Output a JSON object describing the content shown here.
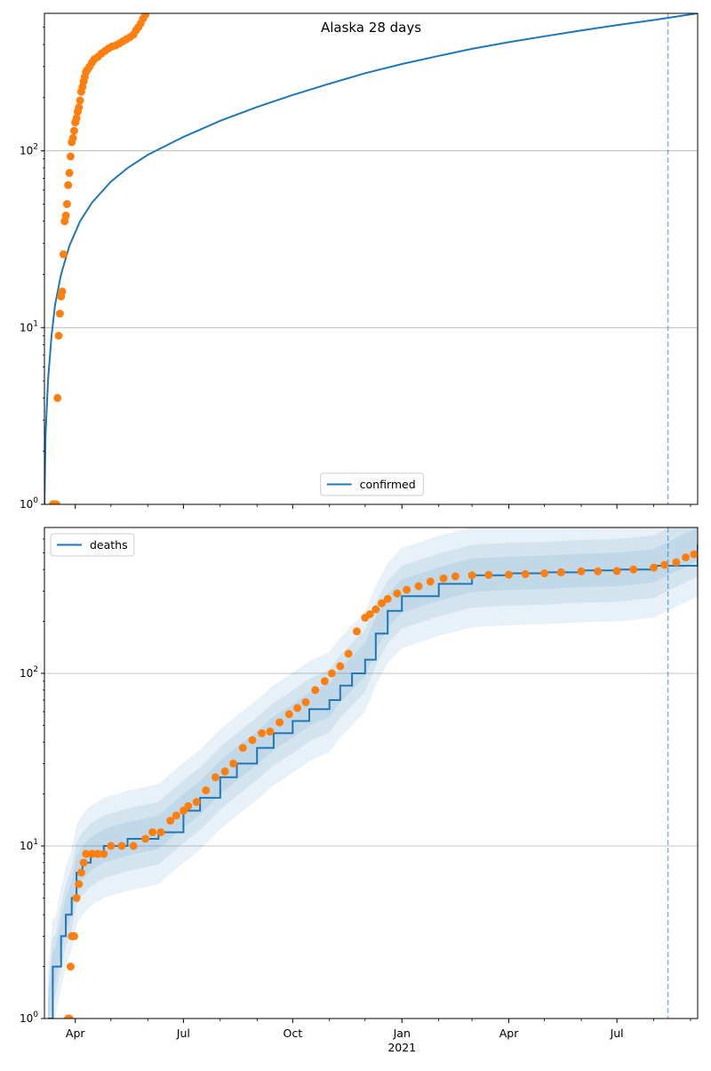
{
  "chart_data": [
    {
      "type": "line",
      "title": "Alaska 28 days",
      "xlabel": "",
      "ylabel": "",
      "yscale": "log",
      "ylim": [
        1,
        600
      ],
      "xlim": [
        "2020-03-06",
        "2021-09-07"
      ],
      "grid": "horizontal major",
      "legend": {
        "placement": "lower-center",
        "entries": [
          "confirmed"
        ]
      },
      "colors": {
        "model": "#1f77b4",
        "observed": "#ff7f0e",
        "marker_line": "#1f77b4"
      },
      "vertical_marker_date": "2021-08-13",
      "ytick_labels": [
        "10^0",
        "10^1",
        "10^2"
      ],
      "series": [
        {
          "name": "confirmed",
          "kind": "line",
          "x": [
            "2020-03-06",
            "2020-03-07",
            "2020-03-09",
            "2020-03-12",
            "2020-03-15",
            "2020-03-20",
            "2020-03-27",
            "2020-04-05",
            "2020-04-15",
            "2020-05-01",
            "2020-05-15",
            "2020-06-01",
            "2020-06-15",
            "2020-07-01",
            "2020-08-01",
            "2020-09-01",
            "2020-10-01",
            "2020-11-01",
            "2020-12-01",
            "2021-01-01",
            "2021-02-01",
            "2021-03-01",
            "2021-04-01",
            "2021-05-01",
            "2021-06-01",
            "2021-07-01",
            "2021-08-01",
            "2021-09-07"
          ],
          "y": [
            1,
            2.5,
            5,
            9,
            13.5,
            20,
            29,
            40,
            51,
            67,
            80,
            95,
            106,
            120,
            148,
            177,
            207,
            240,
            275,
            310,
            345,
            378,
            412,
            445,
            480,
            515,
            550,
            600
          ]
        },
        {
          "name": "",
          "kind": "scatter",
          "x": [
            "2020-03-13",
            "2020-03-14",
            "2020-03-15",
            "2020-03-16",
            "2020-03-17",
            "2020-03-18",
            "2020-03-19",
            "2020-03-20",
            "2020-03-21",
            "2020-03-22",
            "2020-03-23",
            "2020-03-24",
            "2020-03-25",
            "2020-03-26",
            "2020-03-27",
            "2020-03-28",
            "2020-03-29",
            "2020-03-30",
            "2020-03-31",
            "2020-04-01",
            "2020-04-02",
            "2020-04-03",
            "2020-04-04",
            "2020-04-05",
            "2020-04-06",
            "2020-04-07",
            "2020-04-08",
            "2020-04-09",
            "2020-04-10",
            "2020-04-11",
            "2020-04-13",
            "2020-04-15",
            "2020-04-17",
            "2020-04-20",
            "2020-04-23",
            "2020-04-26",
            "2020-04-29",
            "2020-05-02",
            "2020-05-05",
            "2020-05-08",
            "2020-05-11",
            "2020-05-14",
            "2020-05-17",
            "2020-05-20",
            "2020-05-22",
            "2020-05-24",
            "2020-05-26",
            "2020-05-28",
            "2020-05-30",
            "2020-06-01"
          ],
          "y": [
            1,
            1,
            1,
            1,
            4,
            9,
            12,
            15,
            16,
            26,
            40,
            43,
            50,
            64,
            75,
            93,
            112,
            118,
            130,
            145,
            153,
            167,
            176,
            193,
            216,
            230,
            247,
            262,
            280,
            287,
            300,
            316,
            330,
            340,
            355,
            368,
            380,
            390,
            395,
            405,
            417,
            428,
            440,
            455,
            480,
            500,
            525,
            560,
            590,
            630
          ]
        }
      ]
    },
    {
      "type": "line",
      "title": "",
      "xlabel": "",
      "ylabel": "",
      "yscale": "log",
      "ylim": [
        1,
        700
      ],
      "xlim": [
        "2020-03-06",
        "2021-09-07"
      ],
      "grid": "horizontal major",
      "legend": {
        "placement": "upper-left",
        "entries": [
          "deaths"
        ]
      },
      "colors": {
        "model": "#1f77b4",
        "observed": "#ff7f0e",
        "band": "#1f77b4",
        "marker_line": "#1f77b4"
      },
      "vertical_marker_date": "2021-08-13",
      "ytick_labels": [
        "10^0",
        "10^1",
        "10^2"
      ],
      "xtick_labels": [
        "Apr",
        "Jul",
        "Oct",
        "Jan",
        "Apr",
        "Jul"
      ],
      "xtick_dates": [
        "2020-04-01",
        "2020-07-01",
        "2020-10-01",
        "2021-01-01",
        "2021-04-01",
        "2021-07-01"
      ],
      "xtick_year": "2021",
      "bands": {
        "low_factor": [
          0.8,
          0.65,
          0.5
        ],
        "high_factor": [
          1.25,
          1.5,
          1.9
        ]
      },
      "series": [
        {
          "name": "deaths",
          "kind": "line",
          "x": [
            "2020-03-09",
            "2020-03-13",
            "2020-03-15",
            "2020-03-20",
            "2020-03-24",
            "2020-03-29",
            "2020-04-02",
            "2020-04-07",
            "2020-04-14",
            "2020-04-25",
            "2020-05-15",
            "2020-06-10",
            "2020-07-01",
            "2020-07-15",
            "2020-08-01",
            "2020-08-15",
            "2020-09-01",
            "2020-09-15",
            "2020-10-01",
            "2020-10-15",
            "2020-11-01",
            "2020-11-10",
            "2020-11-20",
            "2020-12-01",
            "2020-12-10",
            "2020-12-20",
            "2021-01-01",
            "2021-02-01",
            "2021-03-01",
            "2021-04-01",
            "2021-05-01",
            "2021-06-01",
            "2021-07-01",
            "2021-08-01",
            "2021-09-07"
          ],
          "y": [
            1,
            2,
            2,
            3,
            4,
            5,
            7,
            8,
            9,
            10,
            11,
            12,
            16,
            19,
            25,
            30,
            37,
            45,
            53,
            62,
            70,
            85,
            100,
            120,
            170,
            230,
            280,
            330,
            370,
            380,
            385,
            395,
            400,
            420,
            560
          ]
        },
        {
          "name": "",
          "kind": "scatter",
          "x": [
            "2020-03-26",
            "2020-03-27",
            "2020-03-28",
            "2020-03-29",
            "2020-03-30",
            "2020-03-31",
            "2020-04-02",
            "2020-04-04",
            "2020-04-06",
            "2020-04-08",
            "2020-04-10",
            "2020-04-15",
            "2020-04-20",
            "2020-04-25",
            "2020-05-01",
            "2020-05-10",
            "2020-05-20",
            "2020-05-30",
            "2020-06-05",
            "2020-06-12",
            "2020-06-20",
            "2020-06-25",
            "2020-07-01",
            "2020-07-05",
            "2020-07-12",
            "2020-07-20",
            "2020-07-28",
            "2020-08-05",
            "2020-08-12",
            "2020-08-20",
            "2020-08-28",
            "2020-09-05",
            "2020-09-12",
            "2020-09-20",
            "2020-09-28",
            "2020-10-05",
            "2020-10-12",
            "2020-10-20",
            "2020-10-28",
            "2020-11-03",
            "2020-11-10",
            "2020-11-17",
            "2020-11-24",
            "2020-12-01",
            "2020-12-05",
            "2020-12-10",
            "2020-12-15",
            "2020-12-20",
            "2020-12-28",
            "2021-01-05",
            "2021-01-15",
            "2021-01-25",
            "2021-02-05",
            "2021-02-15",
            "2021-03-01",
            "2021-03-15",
            "2021-04-01",
            "2021-04-15",
            "2021-05-01",
            "2021-05-15",
            "2021-06-01",
            "2021-06-15",
            "2021-07-01",
            "2021-07-15",
            "2021-08-01",
            "2021-08-10",
            "2021-08-20",
            "2021-08-28",
            "2021-09-04"
          ],
          "y": [
            1,
            1,
            2,
            3,
            3,
            3,
            5,
            6,
            7,
            8,
            9,
            9,
            9,
            9,
            10,
            10,
            10,
            11,
            12,
            12,
            14,
            15,
            16,
            17,
            18,
            21,
            25,
            27,
            30,
            37,
            41,
            45,
            46,
            52,
            58,
            63,
            68,
            80,
            90,
            100,
            110,
            130,
            175,
            210,
            220,
            235,
            255,
            270,
            290,
            305,
            320,
            340,
            355,
            365,
            370,
            372,
            373,
            376,
            380,
            385,
            390,
            390,
            392,
            400,
            410,
            425,
            440,
            470,
            490
          ]
        }
      ]
    }
  ]
}
